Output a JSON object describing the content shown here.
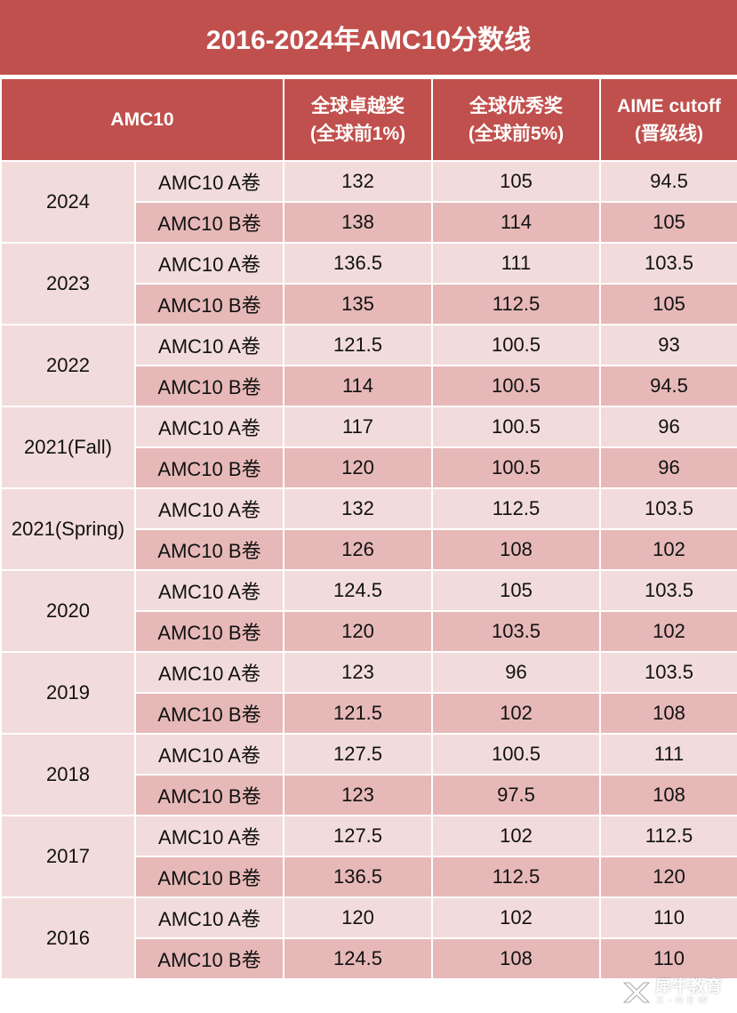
{
  "title": "2016-2024年AMC10分数线",
  "header": {
    "corner_label": "AMC10",
    "columns": [
      {
        "line1": "全球卓越奖",
        "line2": "(全球前1%)"
      },
      {
        "line1": "全球优秀奖",
        "line2": "(全球前5%)"
      },
      {
        "line1": "AIME cutoff",
        "line2": "(晋级线)"
      }
    ]
  },
  "years": [
    {
      "year": "2024",
      "rows": [
        {
          "paper": "AMC10 A卷",
          "top1": "132",
          "top5": "105",
          "aime": "94.5"
        },
        {
          "paper": "AMC10 B卷",
          "top1": "138",
          "top5": "114",
          "aime": "105"
        }
      ]
    },
    {
      "year": "2023",
      "rows": [
        {
          "paper": "AMC10 A卷",
          "top1": "136.5",
          "top5": "111",
          "aime": "103.5"
        },
        {
          "paper": "AMC10 B卷",
          "top1": "135",
          "top5": "112.5",
          "aime": "105"
        }
      ]
    },
    {
      "year": "2022",
      "rows": [
        {
          "paper": "AMC10 A卷",
          "top1": "121.5",
          "top5": "100.5",
          "aime": "93"
        },
        {
          "paper": "AMC10 B卷",
          "top1": "114",
          "top5": "100.5",
          "aime": "94.5"
        }
      ]
    },
    {
      "year": "2021(Fall)",
      "rows": [
        {
          "paper": "AMC10 A卷",
          "top1": "117",
          "top5": "100.5",
          "aime": "96"
        },
        {
          "paper": "AMC10 B卷",
          "top1": "120",
          "top5": "100.5",
          "aime": "96"
        }
      ]
    },
    {
      "year": "2021(Spring)",
      "rows": [
        {
          "paper": "AMC10 A卷",
          "top1": "132",
          "top5": "112.5",
          "aime": "103.5"
        },
        {
          "paper": "AMC10 B卷",
          "top1": "126",
          "top5": "108",
          "aime": "102"
        }
      ]
    },
    {
      "year": "2020",
      "rows": [
        {
          "paper": "AMC10 A卷",
          "top1": "124.5",
          "top5": "105",
          "aime": "103.5"
        },
        {
          "paper": "AMC10 B卷",
          "top1": "120",
          "top5": "103.5",
          "aime": "102"
        }
      ]
    },
    {
      "year": "2019",
      "rows": [
        {
          "paper": "AMC10 A卷",
          "top1": "123",
          "top5": "96",
          "aime": "103.5"
        },
        {
          "paper": "AMC10 B卷",
          "top1": "121.5",
          "top5": "102",
          "aime": "108"
        }
      ]
    },
    {
      "year": "2018",
      "rows": [
        {
          "paper": "AMC10 A卷",
          "top1": "127.5",
          "top5": "100.5",
          "aime": "111"
        },
        {
          "paper": "AMC10 B卷",
          "top1": "123",
          "top5": "97.5",
          "aime": "108"
        }
      ]
    },
    {
      "year": "2017",
      "rows": [
        {
          "paper": "AMC10 A卷",
          "top1": "127.5",
          "top5": "102",
          "aime": "112.5"
        },
        {
          "paper": "AMC10 B卷",
          "top1": "136.5",
          "top5": "112.5",
          "aime": "120"
        }
      ]
    },
    {
      "year": "2016",
      "rows": [
        {
          "paper": "AMC10 A卷",
          "top1": "120",
          "top5": "102",
          "aime": "110"
        },
        {
          "paper": "AMC10 B卷",
          "top1": "124.5",
          "top5": "108",
          "aime": "110"
        }
      ]
    }
  ],
  "watermark": {
    "name_cn": "犀牛教育",
    "name_en": "X-NEW",
    "icon": "rhino-logo-icon"
  },
  "colors": {
    "header_bg": "#c0504d",
    "row_light": "#f2dcdb",
    "row_dark": "#e6b9b8"
  }
}
